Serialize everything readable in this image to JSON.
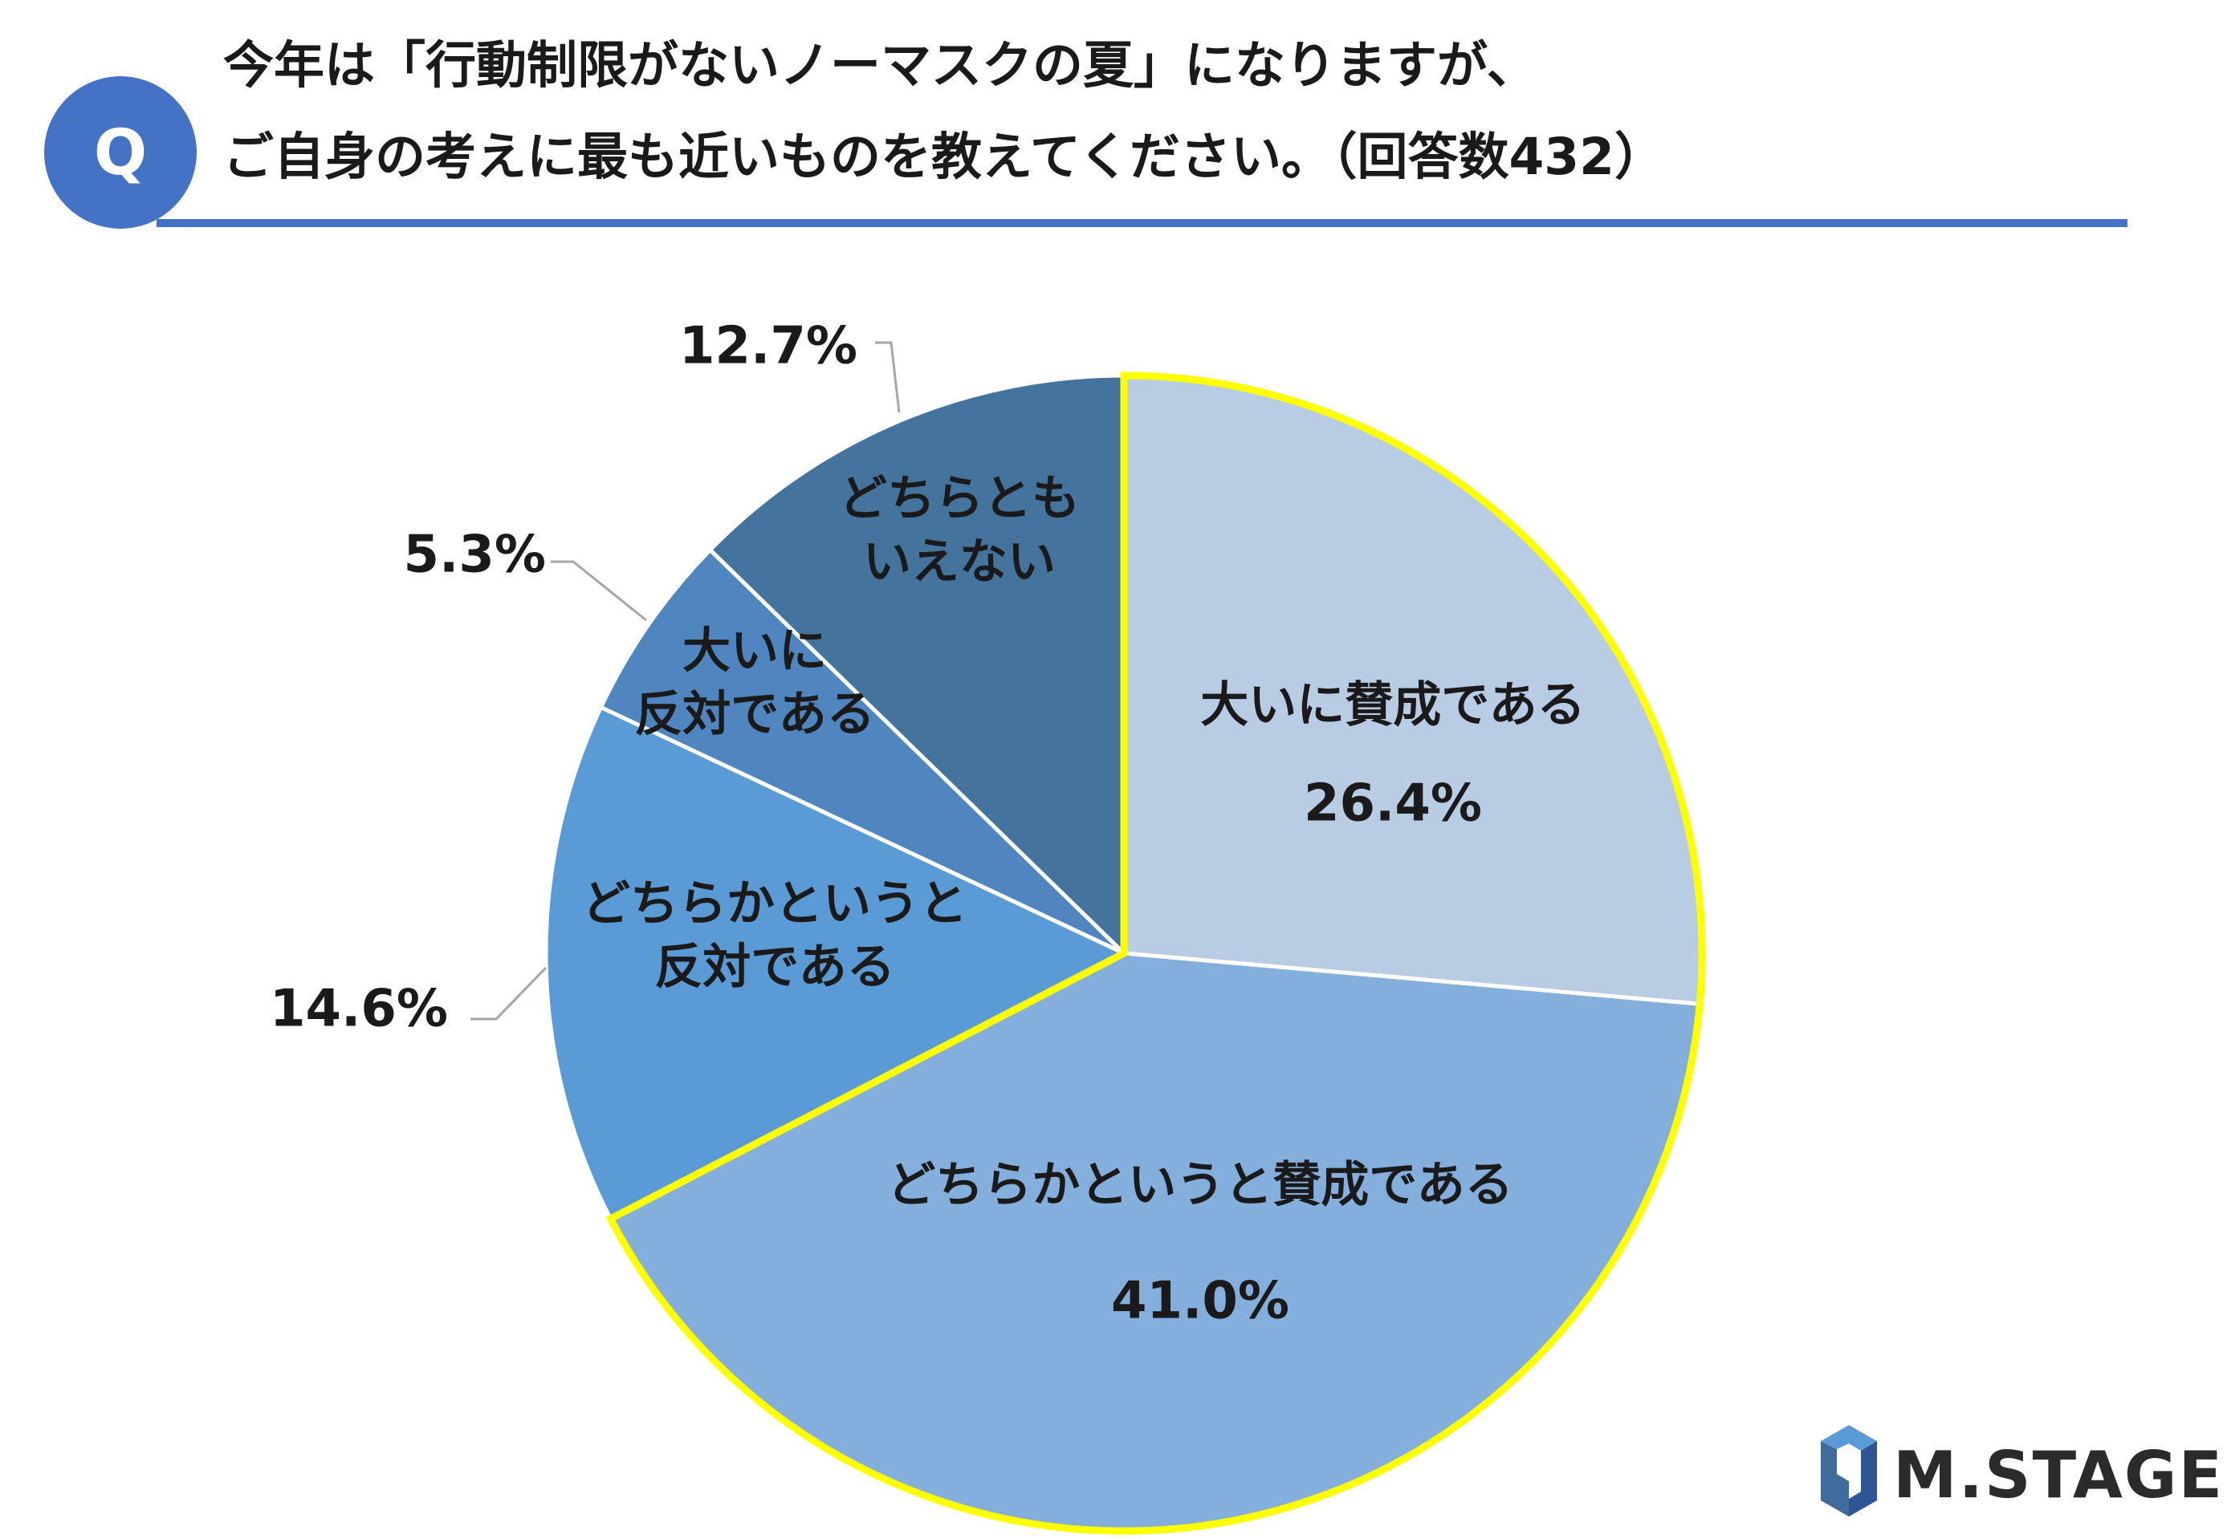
{
  "header": {
    "badge": "Q",
    "question_line1": "今年は「行動制限がないノーマスクの夏」になりますが、",
    "question_line2": "ご自身の考えに最も近いものを教えてください。（回答数432）"
  },
  "brand": {
    "name": "M.STAGE",
    "logo_icon": "hexagon-logo-icon"
  },
  "colors": {
    "accent": "#4472C4",
    "highlight": "#FFFF00",
    "leader": "#A6A6A6"
  },
  "chart_data": {
    "type": "pie",
    "start_angle_deg": 0,
    "direction": "clockwise",
    "slices": [
      {
        "label_lines": [
          "大いに賛成である"
        ],
        "value": 26.4,
        "value_label": "26.4%",
        "color": "#B8CCE4",
        "highlight": true
      },
      {
        "label_lines": [
          "どちらかというと賛成である"
        ],
        "value": 41.0,
        "value_label": "41.0%",
        "color": "#84AEDC",
        "highlight": true
      },
      {
        "label_lines": [
          "どちらかというと",
          "反対である"
        ],
        "value": 14.6,
        "value_label": "14.6%",
        "color": "#5B9BD5",
        "highlight": false
      },
      {
        "label_lines": [
          "大いに",
          "反対である"
        ],
        "value": 5.3,
        "value_label": "5.3%",
        "color": "#4F86C0",
        "highlight": false
      },
      {
        "label_lines": [
          "どちらとも",
          "いえない"
        ],
        "value": 12.7,
        "value_label": "12.7%",
        "color": "#44739E",
        "highlight": false
      }
    ]
  }
}
